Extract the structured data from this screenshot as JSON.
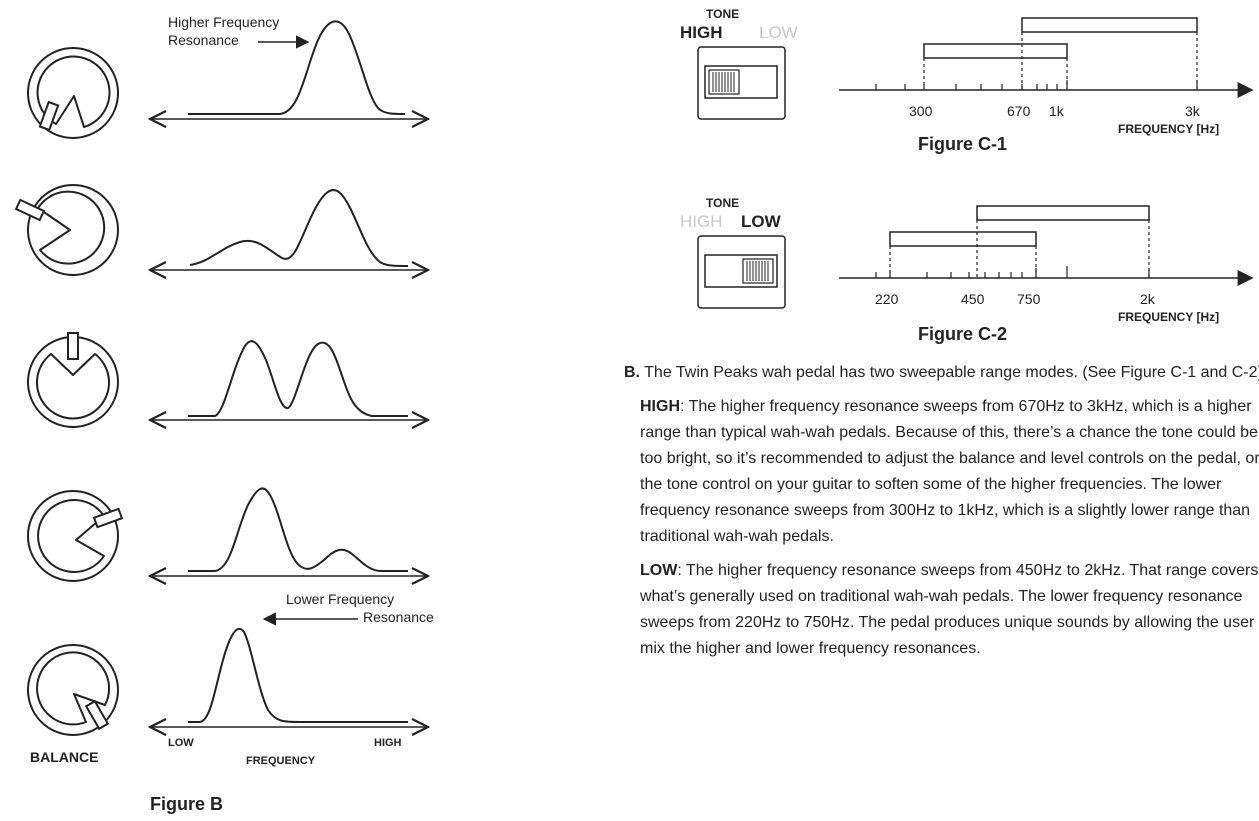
{
  "figure_b": {
    "higher_label_1": "Higher Frequency",
    "higher_label_2": "Resonance",
    "lower_label_1": "Lower Frequency",
    "lower_label_2": "Resonance",
    "axis_low": "LOW",
    "axis_high": "HIGH",
    "axis_title": "FREQUENCY",
    "knob_label": "BALANCE",
    "caption": "Figure B"
  },
  "figure_c1": {
    "tone_label": "TONE",
    "mode_high": "HIGH",
    "mode_low": "LOW",
    "active_mode": "HIGH",
    "ticks": [
      "300",
      "670",
      "1k",
      "3k"
    ],
    "axis_title": "FREQUENCY [Hz]",
    "caption": "Figure C-1"
  },
  "figure_c2": {
    "tone_label": "TONE",
    "mode_high": "HIGH",
    "mode_low": "LOW",
    "active_mode": "LOW",
    "ticks": [
      "220",
      "450",
      "750",
      "2k"
    ],
    "axis_title": "FREQUENCY [Hz]",
    "caption": "Figure C-2"
  },
  "text": {
    "b_marker": "B.",
    "b_intro": " The Twin Peaks wah pedal has two sweepable range modes. (See Figure C-1 and C-2)",
    "high_term": "HIGH",
    "high_body": ": The higher frequency resonance sweeps from 670Hz to 3kHz, which is a higher range than typical wah-wah pedals. Because of this, there’s a chance the tone could be too bright, so it’s recommended to adjust the balance and level controls on the pedal, or the tone control on your guitar to soften some of the higher frequencies. The lower frequency resonance sweeps from 300Hz to 1kHz, which is a slightly lower range than traditional wah-wah pedals.",
    "low_term": "LOW",
    "low_body": ": The higher frequency resonance sweeps from 450Hz to 2kHz. That range covers what’s generally used on traditional wah-wah pedals. The lower frequency resonance sweeps from 220Hz to 750Hz. The pedal produces unique sounds by allowing the user to mix the higher and lower frequency resonances."
  }
}
